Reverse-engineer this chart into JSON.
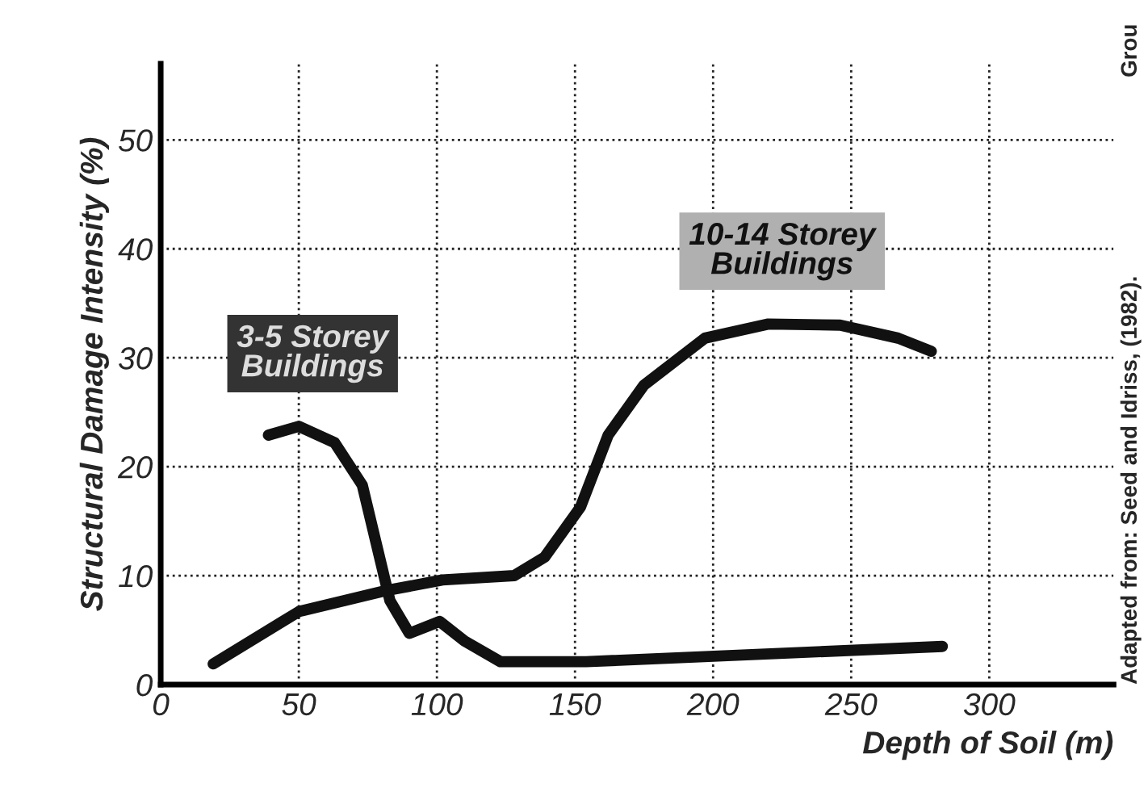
{
  "chart_data": {
    "type": "line",
    "xlabel": "Depth of Soil (m)",
    "ylabel": "Structural Damage Intensity (%)",
    "xlim": [
      0,
      345
    ],
    "ylim": [
      0,
      57
    ],
    "xticks": [
      0,
      50,
      100,
      150,
      200,
      250,
      300
    ],
    "yticks": [
      0,
      10,
      20,
      30,
      40,
      50
    ],
    "grid": true,
    "line_style": "solid",
    "marker": "none",
    "series": [
      {
        "name": "3-5 Storey Buildings",
        "color": "#111111",
        "x": [
          39,
          50,
          63,
          73,
          78,
          83,
          90,
          101,
          110,
          123,
          154,
          283
        ],
        "values": [
          22.9,
          23.7,
          22.2,
          18.3,
          13,
          7.7,
          4.7,
          5.8,
          4,
          2.1,
          2.1,
          3.5
        ]
      },
      {
        "name": "10-14 Storey Buildings",
        "color": "#111111",
        "x": [
          19,
          50,
          81,
          102,
          128,
          139,
          152,
          162,
          175,
          197,
          220,
          246,
          267,
          279
        ],
        "values": [
          1.9,
          6.7,
          8.6,
          9.6,
          10,
          11.7,
          16.3,
          22.9,
          27.5,
          31.8,
          33.1,
          33,
          31.8,
          30.6
        ]
      }
    ],
    "annotations": [
      "Adapted from: Seed and Idriss, (1982).",
      "Grou"
    ]
  }
}
